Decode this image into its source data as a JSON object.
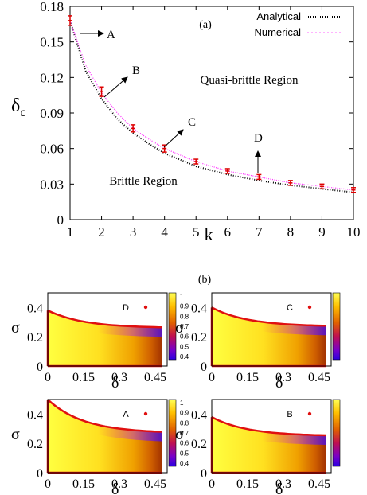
{
  "chart_data": [
    {
      "panel_label": "(a)",
      "type": "line",
      "xlabel": "k",
      "ylabel": "δ_c",
      "xlim": [
        1,
        10
      ],
      "ylim": [
        0,
        0.18
      ],
      "x_ticks": [
        "1",
        "2",
        "3",
        "4",
        "5",
        "6",
        "7",
        "8",
        "9",
        "10"
      ],
      "y_ticks": [
        "0",
        "0.03",
        "0.06",
        "0.09",
        "0.12",
        "0.15",
        "0.18"
      ],
      "legend_position": "top-right",
      "series": [
        {
          "name": "Analytical",
          "color": "#000000",
          "style": "dotted",
          "x": [
            1,
            1.5,
            2,
            2.5,
            3,
            3.5,
            4,
            5,
            6,
            7,
            8,
            9,
            10
          ],
          "y": [
            0.168,
            0.125,
            0.102,
            0.085,
            0.073,
            0.064,
            0.056,
            0.045,
            0.038,
            0.033,
            0.029,
            0.026,
            0.023
          ]
        },
        {
          "name": "Numerical",
          "color": "#ff33ff",
          "style": "dotted",
          "x": [
            1,
            1.5,
            2,
            2.5,
            3,
            3.5,
            4,
            5,
            6,
            7,
            8,
            9,
            10
          ],
          "y": [
            0.168,
            0.13,
            0.107,
            0.09,
            0.077,
            0.068,
            0.06,
            0.049,
            0.041,
            0.036,
            0.031,
            0.028,
            0.025
          ]
        }
      ],
      "error_points": {
        "color": "#dd0000",
        "x": [
          1,
          2,
          3,
          4,
          5,
          6,
          7,
          8,
          9,
          10
        ],
        "y": [
          0.168,
          0.108,
          0.077,
          0.06,
          0.049,
          0.041,
          0.036,
          0.031,
          0.028,
          0.025
        ],
        "err": [
          0.004,
          0.004,
          0.003,
          0.003,
          0.002,
          0.002,
          0.002,
          0.002,
          0.002,
          0.002
        ]
      },
      "annotations": [
        {
          "text": "A",
          "x": 1,
          "y": 0.168,
          "arrow": "right"
        },
        {
          "text": "B",
          "x": 2,
          "y": 0.108,
          "arrow": "up-right"
        },
        {
          "text": "C",
          "x": 4,
          "y": 0.06,
          "arrow": "up-right"
        },
        {
          "text": "D",
          "x": 7,
          "y": 0.036,
          "arrow": "up"
        },
        {
          "text": "Quasi-brittle Region"
        },
        {
          "text": "Brittle Region"
        }
      ]
    },
    {
      "panel_label": "(b)",
      "type": "heatmap",
      "xlabel": "δ",
      "ylabel": "σ",
      "xlim": [
        0,
        0.5
      ],
      "ylim": [
        0,
        0.5
      ],
      "x_ticks": [
        "0",
        "0.15",
        "0.3",
        "0.45"
      ],
      "y_ticks": [
        "0",
        "0.2",
        "0.4"
      ],
      "colorbar_ticks": [
        "1",
        "0.9",
        "0.8",
        "0.7",
        "0.6",
        "0.5",
        "0.4"
      ],
      "colorbar_range": [
        0.4,
        1
      ],
      "subplots": [
        {
          "label": "D",
          "sigma_start": 0.38,
          "sigma_end": 0.26
        },
        {
          "label": "C",
          "sigma_start": 0.4,
          "sigma_end": 0.27
        },
        {
          "label": "A",
          "sigma_start": 0.5,
          "sigma_end": 0.27
        },
        {
          "label": "B",
          "sigma_start": 0.38,
          "sigma_end": 0.25
        }
      ]
    }
  ]
}
